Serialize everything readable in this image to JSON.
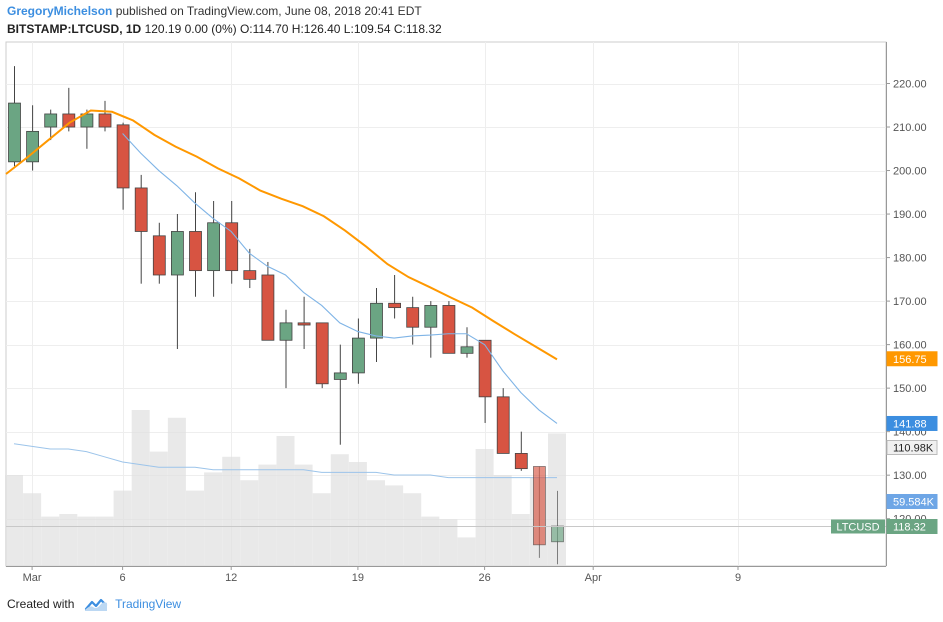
{
  "header": {
    "author": "GregoryMichelson",
    "published": "published on TradingView.com, June 08, 2018 20:41 EDT",
    "symbol": "BITSTAMP:LTCUSD, 1D",
    "quote": "120.19 0.00 (0%) O:114.70 H:126.40 L:109.54 C:118.32"
  },
  "footer": {
    "created_with": "Created with",
    "brand": "TradingView"
  },
  "colors": {
    "up": "#6ba583",
    "down": "#d75442",
    "ma_slow": "#ff9800",
    "ma_fast": "#7fb4e6",
    "volume": "#e0e0e0",
    "grid": "#eeeeee",
    "axis": "#555555"
  },
  "chart_data": {
    "type": "candlestick",
    "x_ticks": [
      {
        "label": "Mar",
        "index": 1
      },
      {
        "label": "6",
        "index": 6
      },
      {
        "label": "12",
        "index": 12
      },
      {
        "label": "19",
        "index": 19
      },
      {
        "label": "26",
        "index": 26
      },
      {
        "label": "Apr",
        "index": 32
      },
      {
        "label": "9",
        "index": 40
      }
    ],
    "y_ticks": [
      120,
      130,
      140,
      150,
      160,
      170,
      180,
      190,
      200,
      210,
      220
    ],
    "ylim": [
      108,
      230
    ],
    "candles": [
      {
        "o": 202,
        "h": 224,
        "l": 201,
        "c": 215.5
      },
      {
        "o": 202,
        "h": 215,
        "l": 200,
        "c": 209
      },
      {
        "o": 210,
        "h": 214,
        "l": 207,
        "c": 213
      },
      {
        "o": 213,
        "h": 219,
        "l": 209,
        "c": 210
      },
      {
        "o": 210,
        "h": 214,
        "l": 205,
        "c": 213
      },
      {
        "o": 213,
        "h": 216,
        "l": 209,
        "c": 210
      },
      {
        "o": 210.5,
        "h": 211,
        "l": 191,
        "c": 196
      },
      {
        "o": 196,
        "h": 199,
        "l": 174,
        "c": 186
      },
      {
        "o": 185,
        "h": 188,
        "l": 174,
        "c": 176
      },
      {
        "o": 176,
        "h": 190,
        "l": 159,
        "c": 186
      },
      {
        "o": 186,
        "h": 195,
        "l": 171,
        "c": 177
      },
      {
        "o": 177,
        "h": 193,
        "l": 171,
        "c": 188
      },
      {
        "o": 188,
        "h": 193,
        "l": 174,
        "c": 177
      },
      {
        "o": 177,
        "h": 182,
        "l": 173,
        "c": 175
      },
      {
        "o": 176,
        "h": 179,
        "l": 161,
        "c": 161
      },
      {
        "o": 161,
        "h": 168,
        "l": 150,
        "c": 165
      },
      {
        "o": 165,
        "h": 171,
        "l": 159,
        "c": 164.5
      },
      {
        "o": 165,
        "h": 165,
        "l": 150,
        "c": 151
      },
      {
        "o": 152,
        "h": 160,
        "l": 137,
        "c": 153.5
      },
      {
        "o": 153.5,
        "h": 166,
        "l": 151,
        "c": 161.5
      },
      {
        "o": 161.5,
        "h": 173,
        "l": 156,
        "c": 169.5
      },
      {
        "o": 169.5,
        "h": 176,
        "l": 166,
        "c": 168.5
      },
      {
        "o": 168.5,
        "h": 171,
        "l": 160,
        "c": 164
      },
      {
        "o": 164,
        "h": 170,
        "l": 157,
        "c": 169
      },
      {
        "o": 169,
        "h": 170,
        "l": 158,
        "c": 158
      },
      {
        "o": 158,
        "h": 164,
        "l": 157,
        "c": 159.5
      },
      {
        "o": 161,
        "h": 161,
        "l": 142,
        "c": 148
      },
      {
        "o": 148,
        "h": 150,
        "l": 135,
        "c": 135
      },
      {
        "o": 135,
        "h": 140,
        "l": 131,
        "c": 131.5
      },
      {
        "o": 132,
        "h": 132,
        "l": 111,
        "c": 114
      },
      {
        "o": 114.7,
        "h": 126.4,
        "l": 109.54,
        "c": 118.32
      }
    ],
    "volume": [
      0.35,
      0.28,
      0.19,
      0.2,
      0.19,
      0.19,
      0.29,
      0.6,
      0.44,
      0.57,
      0.29,
      0.36,
      0.42,
      0.33,
      0.39,
      0.5,
      0.39,
      0.28,
      0.43,
      0.4,
      0.33,
      0.31,
      0.28,
      0.19,
      0.18,
      0.11,
      0.45,
      0.35,
      0.2,
      0.34,
      0.51
    ],
    "ma_slow": [
      199.2,
      203,
      207,
      211,
      213.8,
      213.5,
      211.5,
      208.2,
      205.5,
      203.2,
      200.5,
      198.2,
      195.4,
      193.5,
      191.8,
      189.5,
      186.2,
      182.5,
      178.5,
      175.5,
      173.2,
      170.8,
      168.5,
      165.4,
      162.4,
      159.5,
      156.6
    ],
    "ma_fast_points": [
      {
        "i": 6,
        "v": 208.5
      },
      {
        "i": 7,
        "v": 204
      },
      {
        "i": 8,
        "v": 200
      },
      {
        "i": 9,
        "v": 196.5
      },
      {
        "i": 10,
        "v": 192.5
      },
      {
        "i": 11,
        "v": 189
      },
      {
        "i": 12,
        "v": 186
      },
      {
        "i": 13,
        "v": 181
      },
      {
        "i": 14,
        "v": 178
      },
      {
        "i": 15,
        "v": 176
      },
      {
        "i": 16,
        "v": 172
      },
      {
        "i": 17,
        "v": 169
      },
      {
        "i": 18,
        "v": 165
      },
      {
        "i": 19,
        "v": 163
      },
      {
        "i": 20,
        "v": 162
      },
      {
        "i": 21,
        "v": 161.5
      },
      {
        "i": 22,
        "v": 162
      },
      {
        "i": 23,
        "v": 162.2
      },
      {
        "i": 24,
        "v": 162.5
      },
      {
        "i": 25,
        "v": 162.5
      },
      {
        "i": 26,
        "v": 160
      },
      {
        "i": 27,
        "v": 154
      },
      {
        "i": 28,
        "v": 149
      },
      {
        "i": 29,
        "v": 145
      },
      {
        "i": 30,
        "v": 141.88
      }
    ],
    "vol_ma": [
      0.47,
      0.46,
      0.45,
      0.45,
      0.44,
      0.42,
      0.4,
      0.39,
      0.38,
      0.38,
      0.38,
      0.37,
      0.37,
      0.37,
      0.37,
      0.37,
      0.37,
      0.36,
      0.36,
      0.36,
      0.36,
      0.35,
      0.35,
      0.35,
      0.34,
      0.34,
      0.34,
      0.34,
      0.34,
      0.34,
      0.34
    ],
    "labels": {
      "ma_slow": "156.75",
      "ma_fast": "141.88",
      "volume": "110.98K",
      "vol_ma": "59.584K",
      "symbol": "LTCUSD",
      "last": "118.32"
    },
    "grid": true
  }
}
